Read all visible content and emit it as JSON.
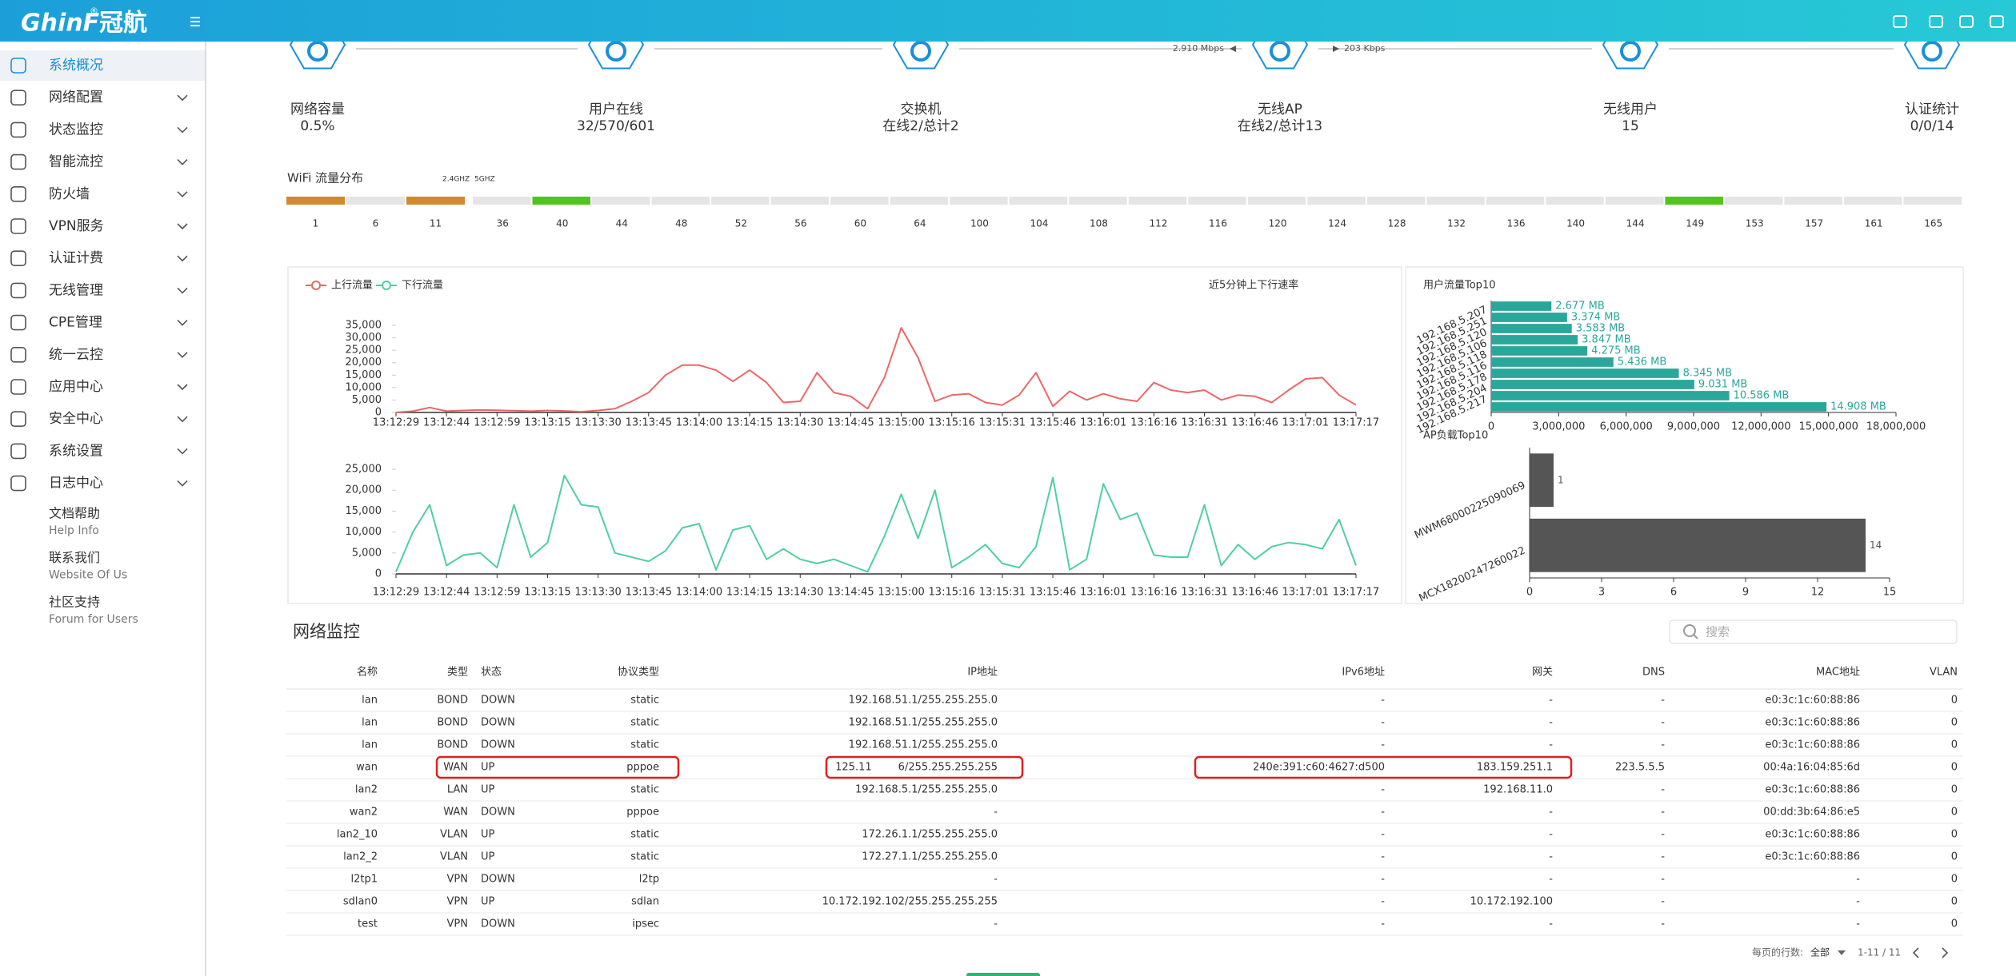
{
  "brand": {
    "logo": "GhinF",
    "mark": "®",
    "name": "冠航"
  },
  "sidebar": {
    "menu": [
      "系统概况",
      "网络配置",
      "状态监控",
      "智能流控",
      "防火墙",
      "VPN服务",
      "认证计费",
      "无线管理",
      "CPE管理",
      "统一云控",
      "应用中心",
      "安全中心",
      "系统设置",
      "日志中心"
    ],
    "help": [
      {
        "title": "文档帮助",
        "subtitle": "Help Info"
      },
      {
        "title": "联系我们",
        "subtitle": "Website Of Us"
      },
      {
        "title": "社区支持",
        "subtitle": "Forum for Users"
      }
    ]
  },
  "summary": {
    "items": [
      {
        "label": "网络容量",
        "value": "0.5%"
      },
      {
        "label": "用户在线",
        "value": "32/570/601"
      },
      {
        "label": "交换机",
        "value": "在线2/总计2"
      },
      {
        "label": "无线AP",
        "value": "在线2/总计13"
      },
      {
        "label": "无线用户",
        "value": "15"
      },
      {
        "label": "认证统计",
        "value": "0/0/14"
      }
    ],
    "rate_up": "2.910 Mbps",
    "rate_down": "203 Kbps"
  },
  "wifi": {
    "title": "WiFi 流量分布",
    "band_24": "2.4GHZ",
    "band_5": "5GHZ",
    "channels_24": [
      1,
      6,
      11
    ],
    "colors_24": [
      "#cf8a2e",
      "#e5e5e5",
      "#cf8a2e"
    ],
    "channels_5": [
      36,
      40,
      44,
      48,
      52,
      56,
      60,
      64,
      100,
      104,
      108,
      112,
      116,
      120,
      124,
      128,
      132,
      136,
      140,
      144,
      149,
      153,
      157,
      161,
      165
    ],
    "colors_5": [
      "#e5e5e5",
      "#52c41a",
      "#e5e5e5",
      "#e5e5e5",
      "#e5e5e5",
      "#e5e5e5",
      "#e5e5e5",
      "#e5e5e5",
      "#e5e5e5",
      "#e5e5e5",
      "#e5e5e5",
      "#e5e5e5",
      "#e5e5e5",
      "#e5e5e5",
      "#e5e5e5",
      "#e5e5e5",
      "#e5e5e5",
      "#e5e5e5",
      "#e5e5e5",
      "#e5e5e5",
      "#52c41a",
      "#e5e5e5",
      "#e5e5e5",
      "#e5e5e5",
      "#e5e5e5"
    ]
  },
  "traffic_chart": {
    "type": "line",
    "title": "近5分钟上下行速率",
    "categories": [
      "13:12:29",
      null,
      null,
      "13:12:44",
      null,
      null,
      "13:12:59",
      null,
      null,
      "13:13:15",
      null,
      null,
      "13:13:30",
      null,
      null,
      "13:13:45",
      null,
      null,
      "13:14:00",
      null,
      null,
      "13:14:15",
      null,
      null,
      "13:14:30",
      null,
      null,
      "13:14:45",
      null,
      null,
      "13:15:00",
      null,
      null,
      "13:15:16",
      null,
      null,
      "13:15:31",
      null,
      null,
      "13:15:46",
      null,
      null,
      "13:16:01",
      null,
      null,
      "13:16:16",
      null,
      null,
      "13:16:31",
      null,
      null,
      "13:16:46",
      null,
      null,
      "13:17:01",
      null,
      null,
      "13:17:17"
    ],
    "series": [
      {
        "name": "上行流量",
        "color": "#ee6666",
        "values": [
          0,
          500,
          2000,
          500,
          800,
          1000,
          900,
          700,
          500,
          800,
          600,
          300,
          800,
          1500,
          4500,
          8000,
          15000,
          19000,
          19000,
          17000,
          12500,
          17000,
          12000,
          4000,
          4500,
          16000,
          8000,
          6500,
          1500,
          14000,
          34000,
          22000,
          4500,
          7000,
          7500,
          4000,
          3000,
          7000,
          16000,
          2500,
          8500,
          5000,
          7500,
          5500,
          4500,
          12000,
          9000,
          8000,
          9000,
          5000,
          7000,
          6500,
          4000,
          9000,
          13500,
          14000,
          7000,
          3000
        ],
        "ylim": [
          0,
          35000
        ],
        "yticks": [
          0,
          {
            "value": 5000,
            "label": "5,000"
          },
          {
            "value": 10000,
            "label": "10,000"
          },
          {
            "value": 15000,
            "label": "15,000"
          },
          {
            "value": 20000,
            "label": "20,000"
          },
          {
            "value": 25000,
            "label": "25,000"
          },
          {
            "value": 30000,
            "label": "30,000"
          },
          {
            "value": 35000,
            "label": "35,000"
          }
        ]
      },
      {
        "name": "下行流量",
        "color": "#4fcf9f",
        "values": [
          500,
          10000,
          16500,
          2000,
          4500,
          5000,
          1500,
          16500,
          4000,
          7500,
          23500,
          16500,
          16000,
          5000,
          4000,
          3000,
          5500,
          11000,
          12000,
          1000,
          10500,
          11500,
          3500,
          6000,
          3500,
          2500,
          3500,
          2000,
          500,
          9000,
          19000,
          8500,
          20000,
          1500,
          4000,
          7000,
          2500,
          1500,
          6500,
          23000,
          1000,
          3500,
          21500,
          13000,
          14500,
          4500,
          4000,
          4000,
          16500,
          2000,
          7000,
          3500,
          6500,
          7500,
          7000,
          6000,
          13000,
          2000
        ],
        "ylim": [
          0,
          25000
        ],
        "yticks": [
          0,
          {
            "value": 5000,
            "label": "5,000"
          },
          {
            "value": 10000,
            "label": "10,000"
          },
          {
            "value": 15000,
            "label": "15,000"
          },
          {
            "value": 20000,
            "label": "20,000"
          },
          {
            "value": 25000,
            "label": "25,000"
          }
        ]
      }
    ]
  },
  "top_users": {
    "type": "hbar",
    "title": "用户流量Top10",
    "color": "#2aa79b",
    "categories": [
      "192.168.5.207",
      "192.168.5.251",
      "192.168.5.120",
      "192.168.5.106",
      "192.168.5.118",
      "192.168.5.116",
      "192.168.5.178",
      "192.168.5.204",
      "192.168.5.217",
      null
    ],
    "values": [
      2677000,
      3374000,
      3583000,
      3847000,
      4275000,
      5436000,
      8345000,
      9031000,
      10586000,
      14908000
    ],
    "value_labels": [
      "2.677 MB",
      "3.374 MB",
      "3.583 MB",
      "3.847 MB",
      "4.275 MB",
      "5.436 MB",
      "8.345 MB",
      "9.031 MB",
      "10.586 MB",
      "14.908 MB"
    ],
    "xlim": [
      0,
      18000000
    ],
    "xticks": [
      0,
      {
        "value": 3000000,
        "label": "3,000,000"
      },
      {
        "value": 6000000,
        "label": "6,000,000"
      },
      {
        "value": 9000000,
        "label": "9,000,000"
      },
      {
        "value": 12000000,
        "label": "12,000,000"
      },
      {
        "value": 15000000,
        "label": "15,000,000"
      },
      {
        "value": 18000000,
        "label": "18,000,000"
      }
    ]
  },
  "ap_load": {
    "type": "hbar",
    "title": "AP负载Top10",
    "color": "#555555",
    "categories": [
      "MWM68000225090069",
      "MCX18200247260022"
    ],
    "values": [
      1,
      14
    ],
    "xlim": [
      0,
      15
    ],
    "xticks": [
      0,
      3,
      6,
      9,
      12,
      15
    ]
  },
  "network": {
    "title": "网络监控",
    "search": "搜索",
    "columns": [
      "名称",
      "类型",
      "状态",
      "协议类型",
      "IP地址",
      "IPv6地址",
      "网关",
      "DNS",
      "MAC地址",
      "VLAN"
    ],
    "rows": [
      [
        "lan",
        "BOND",
        "DOWN",
        "static",
        "192.168.51.1/255.255.255.0",
        "-",
        "-",
        "-",
        "e0:3c:1c:60:88:86",
        0
      ],
      [
        "lan",
        "BOND",
        "DOWN",
        "static",
        "192.168.51.1/255.255.255.0",
        "-",
        "-",
        "-",
        "e0:3c:1c:60:88:86",
        0
      ],
      [
        "lan",
        "BOND",
        "DOWN",
        "static",
        "192.168.51.1/255.255.255.0",
        "-",
        "-",
        "-",
        "e0:3c:1c:60:88:86",
        0
      ],
      [
        "wan",
        "WAN",
        "UP",
        "pppoe",
        "125.11        6/255.255.255.255",
        "240e:391:c60:4627:d500",
        "183.159.251.1",
        "223.5.5.5",
        "00:4a:16:04:85:6d",
        0
      ],
      [
        "lan2",
        "LAN",
        "UP",
        "static",
        "192.168.5.1/255.255.255.0",
        "-",
        "192.168.11.0",
        "-",
        "e0:3c:1c:60:88:86",
        0
      ],
      [
        "wan2",
        "WAN",
        "DOWN",
        "pppoe",
        "-",
        "-",
        "-",
        "-",
        "00:dd:3b:64:86:e5",
        0
      ],
      [
        "lan2_10",
        "VLAN",
        "UP",
        "static",
        "172.26.1.1/255.255.255.0",
        "-",
        "-",
        "-",
        "e0:3c:1c:60:88:86",
        0
      ],
      [
        "lan2_2",
        "VLAN",
        "UP",
        "static",
        "172.27.1.1/255.255.255.0",
        "-",
        "-",
        "-",
        "e0:3c:1c:60:88:86",
        0
      ],
      [
        "l2tp1",
        "VPN",
        "DOWN",
        "l2tp",
        "-",
        "-",
        "-",
        "-",
        "-",
        0
      ],
      [
        "sdlan0",
        "VPN",
        "UP",
        "sdlan",
        "10.172.192.102/255.255.255.255",
        "-",
        "10.172.192.100",
        "-",
        "-",
        0
      ],
      [
        "test",
        "VPN",
        "DOWN",
        "ipsec",
        "-",
        "-",
        "-",
        "-",
        "-",
        0
      ]
    ],
    "rows_per_page_label": "每页的行数:",
    "rows_per_page": "全部",
    "range": "1-11 / 11"
  }
}
